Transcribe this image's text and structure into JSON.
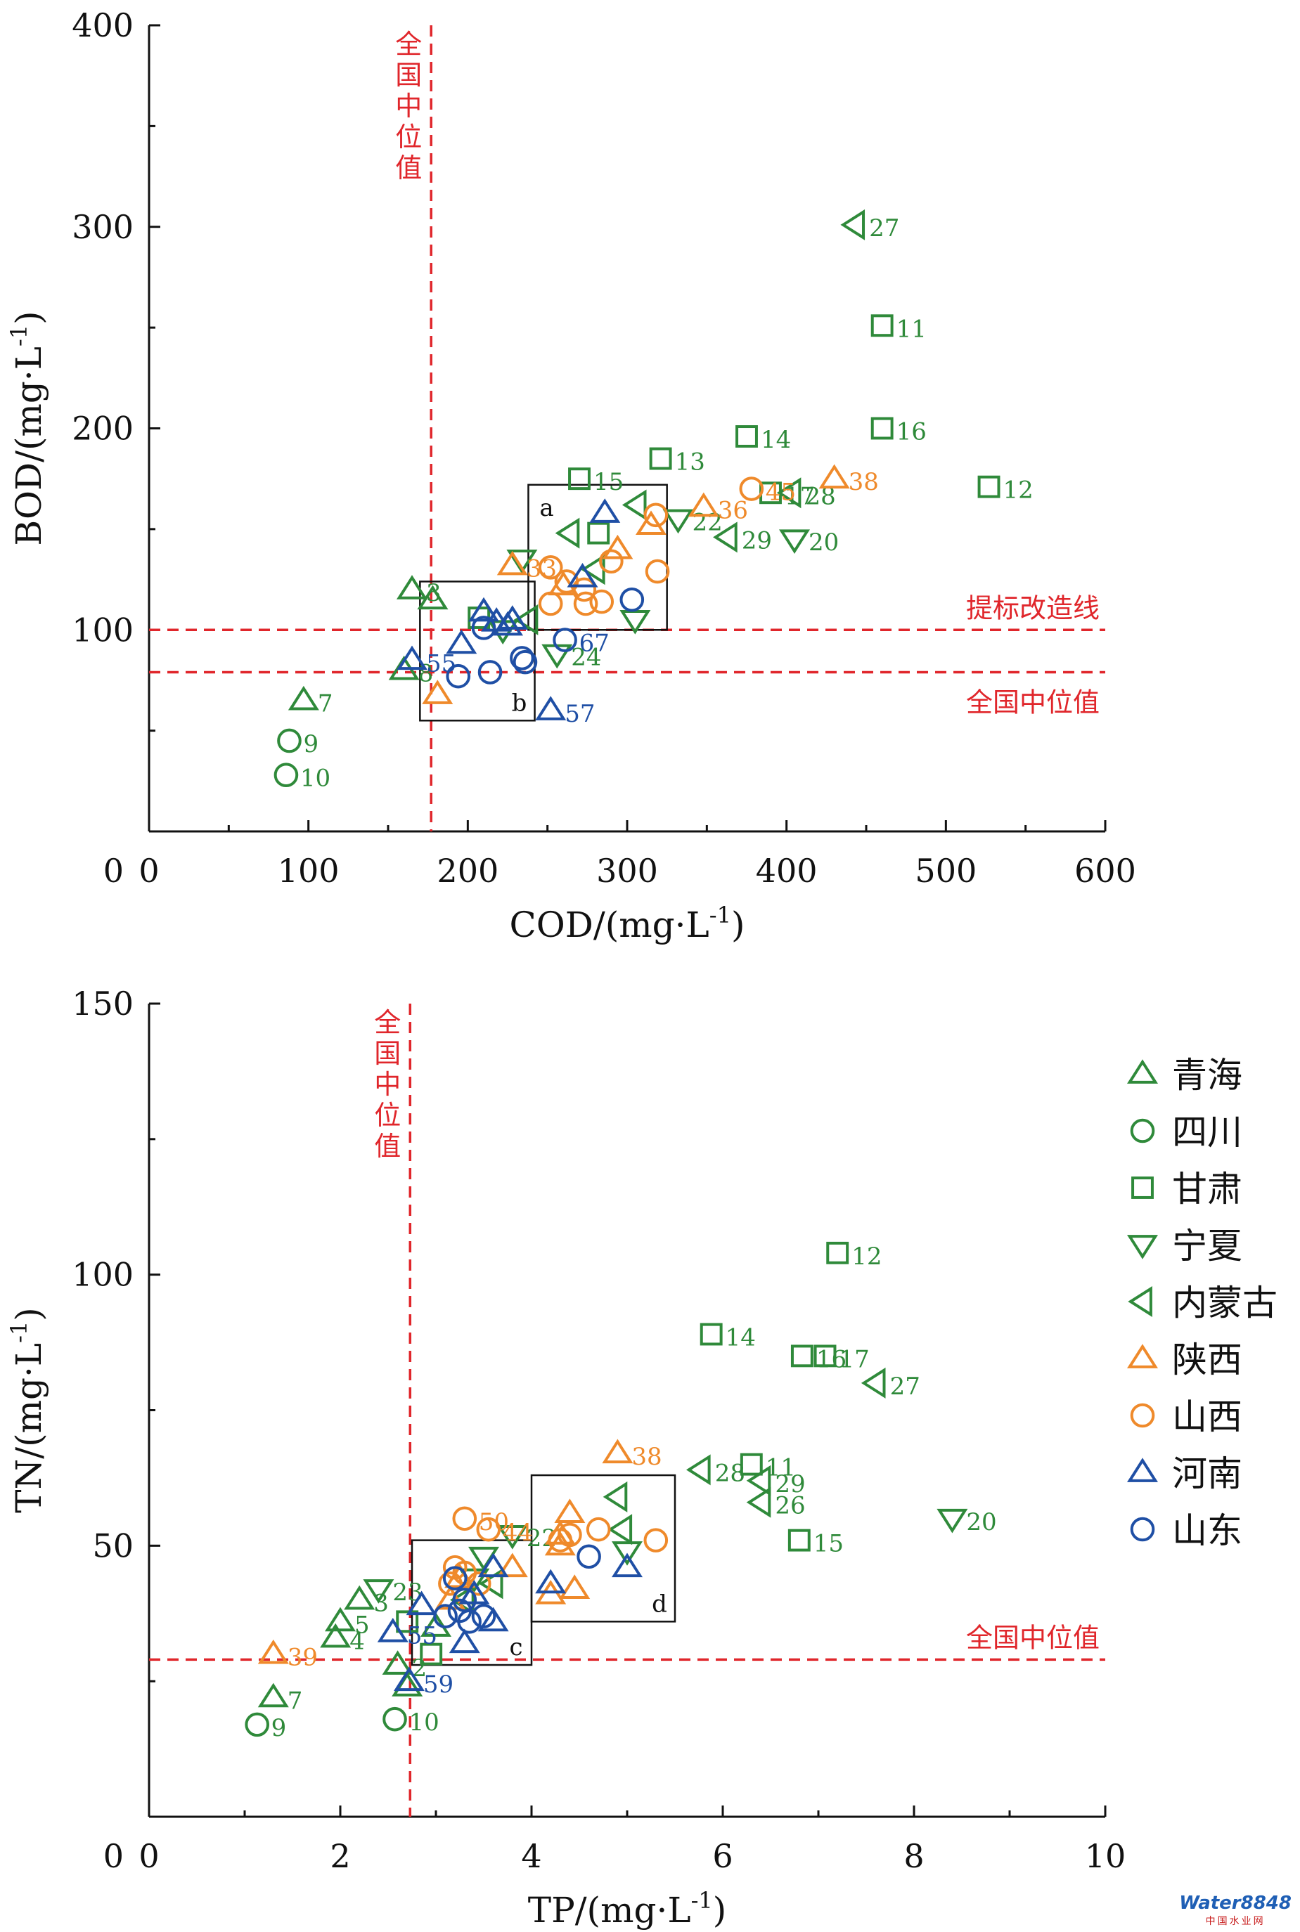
{
  "colors": {
    "qinghai": "#2f8a3a",
    "sichuan": "#2f8a3a",
    "gansu": "#2f8a3a",
    "ningxia": "#2f8a3a",
    "neimenggu": "#2f8a3a",
    "shaanxi": "#ef8a2b",
    "shanxi": "#ef8a2b",
    "henan": "#1f4fa5",
    "shandong": "#1f4fa5",
    "reference": "#e0262b"
  },
  "legend": [
    {
      "key": "qinghai",
      "label": "青海",
      "marker": "triangle-up"
    },
    {
      "key": "sichuan",
      "label": "四川",
      "marker": "circle"
    },
    {
      "key": "gansu",
      "label": "甘肃",
      "marker": "square"
    },
    {
      "key": "ningxia",
      "label": "宁夏",
      "marker": "triangle-down"
    },
    {
      "key": "neimenggu",
      "label": "内蒙古",
      "marker": "triangle-left"
    },
    {
      "key": "shaanxi",
      "label": "陕西",
      "marker": "triangle-up"
    },
    {
      "key": "shanxi",
      "label": "山西",
      "marker": "circle"
    },
    {
      "key": "henan",
      "label": "河南",
      "marker": "triangle-up"
    },
    {
      "key": "shandong",
      "label": "山东",
      "marker": "circle"
    }
  ],
  "watermark": {
    "main": "Water8848",
    "sub": "中国水业网"
  },
  "chart_data": [
    {
      "type": "scatter",
      "xlabel": "COD/(mg·L",
      "xlabel_sup": "-1",
      "xlabel_end": ")",
      "ylabel": "BOD/(mg·L",
      "ylabel_sup": "-1",
      "ylabel_end": ")",
      "xlim": [
        0,
        600
      ],
      "ylim": [
        0,
        400
      ],
      "xticks": [
        0,
        100,
        200,
        300,
        400,
        500,
        600
      ],
      "yticks": [
        0,
        100,
        200,
        300,
        400
      ],
      "ref_lines": [
        {
          "axis": "x",
          "value": 177,
          "label": "全国中位值",
          "vertical_text": true
        },
        {
          "axis": "y",
          "value": 100,
          "label": "提标改造线"
        },
        {
          "axis": "y",
          "value": 79,
          "label": "全国中位值"
        }
      ],
      "boxes": [
        {
          "label": "a",
          "x": [
            238,
            325
          ],
          "y": [
            100,
            172
          ]
        },
        {
          "label": "b",
          "x": [
            170,
            242
          ],
          "y": [
            55,
            124
          ]
        }
      ],
      "points": [
        {
          "s": "qinghai",
          "x": 165,
          "y": 120,
          "label": "3"
        },
        {
          "s": "qinghai",
          "x": 160,
          "y": 80,
          "label": "8"
        },
        {
          "s": "qinghai",
          "x": 97,
          "y": 65,
          "label": "7"
        },
        {
          "s": "qinghai",
          "x": 178,
          "y": 115
        },
        {
          "s": "sichuan",
          "x": 88,
          "y": 45,
          "label": "9"
        },
        {
          "s": "sichuan",
          "x": 86,
          "y": 28,
          "label": "10"
        },
        {
          "s": "gansu",
          "x": 270,
          "y": 175,
          "label": "15"
        },
        {
          "s": "gansu",
          "x": 321,
          "y": 185,
          "label": "13"
        },
        {
          "s": "gansu",
          "x": 375,
          "y": 196,
          "label": "14"
        },
        {
          "s": "gansu",
          "x": 460,
          "y": 251,
          "label": "11"
        },
        {
          "s": "gansu",
          "x": 460,
          "y": 200,
          "label": "16"
        },
        {
          "s": "gansu",
          "x": 527,
          "y": 171,
          "label": "12"
        },
        {
          "s": "gansu",
          "x": 390,
          "y": 168,
          "label": "17"
        },
        {
          "s": "gansu",
          "x": 282,
          "y": 148
        },
        {
          "s": "gansu",
          "x": 207,
          "y": 106
        },
        {
          "s": "ningxia",
          "x": 405,
          "y": 145,
          "label": "20"
        },
        {
          "s": "ningxia",
          "x": 332,
          "y": 155,
          "label": "22"
        },
        {
          "s": "ningxia",
          "x": 256,
          "y": 88,
          "label": "24"
        },
        {
          "s": "ningxia",
          "x": 305,
          "y": 105
        },
        {
          "s": "ningxia",
          "x": 234,
          "y": 135
        },
        {
          "s": "ningxia",
          "x": 222,
          "y": 100
        },
        {
          "s": "neimenggu",
          "x": 443,
          "y": 301,
          "label": "27"
        },
        {
          "s": "neimenggu",
          "x": 403,
          "y": 168,
          "label": "28"
        },
        {
          "s": "neimenggu",
          "x": 363,
          "y": 146,
          "label": "29"
        },
        {
          "s": "neimenggu",
          "x": 264,
          "y": 148
        },
        {
          "s": "neimenggu",
          "x": 306,
          "y": 162
        },
        {
          "s": "neimenggu",
          "x": 280,
          "y": 130
        },
        {
          "s": "neimenggu",
          "x": 238,
          "y": 105
        },
        {
          "s": "shaanxi",
          "x": 430,
          "y": 175,
          "label": "38"
        },
        {
          "s": "shaanxi",
          "x": 348,
          "y": 161,
          "label": "36"
        },
        {
          "s": "shaanxi",
          "x": 228,
          "y": 132,
          "label": "33"
        },
        {
          "s": "shaanxi",
          "x": 181,
          "y": 68
        },
        {
          "s": "shaanxi",
          "x": 315,
          "y": 152
        },
        {
          "s": "shaanxi",
          "x": 294,
          "y": 140
        },
        {
          "s": "shaanxi",
          "x": 260,
          "y": 122
        },
        {
          "s": "shanxi",
          "x": 378,
          "y": 170,
          "label": "45"
        },
        {
          "s": "shanxi",
          "x": 318,
          "y": 157
        },
        {
          "s": "shanxi",
          "x": 319,
          "y": 129
        },
        {
          "s": "shanxi",
          "x": 252,
          "y": 131
        },
        {
          "s": "shanxi",
          "x": 262,
          "y": 124
        },
        {
          "s": "shanxi",
          "x": 273,
          "y": 120
        },
        {
          "s": "shanxi",
          "x": 252,
          "y": 113
        },
        {
          "s": "shanxi",
          "x": 274,
          "y": 113
        },
        {
          "s": "shanxi",
          "x": 284,
          "y": 114
        },
        {
          "s": "shanxi",
          "x": 290,
          "y": 134
        },
        {
          "s": "henan",
          "x": 165,
          "y": 85,
          "label": "55"
        },
        {
          "s": "henan",
          "x": 252,
          "y": 60,
          "label": "57"
        },
        {
          "s": "henan",
          "x": 286,
          "y": 158
        },
        {
          "s": "henan",
          "x": 272,
          "y": 126
        },
        {
          "s": "henan",
          "x": 196,
          "y": 93
        },
        {
          "s": "henan",
          "x": 210,
          "y": 109
        },
        {
          "s": "henan",
          "x": 218,
          "y": 104
        },
        {
          "s": "henan",
          "x": 225,
          "y": 102
        },
        {
          "s": "henan",
          "x": 228,
          "y": 105
        },
        {
          "s": "shandong",
          "x": 261,
          "y": 95,
          "label": "67"
        },
        {
          "s": "shandong",
          "x": 303,
          "y": 115
        },
        {
          "s": "shandong",
          "x": 194,
          "y": 77
        },
        {
          "s": "shandong",
          "x": 214,
          "y": 79
        },
        {
          "s": "shandong",
          "x": 234,
          "y": 86
        },
        {
          "s": "shandong",
          "x": 210,
          "y": 101
        },
        {
          "s": "shandong",
          "x": 236,
          "y": 84
        }
      ]
    },
    {
      "type": "scatter",
      "xlabel": "TP/(mg·L",
      "xlabel_sup": "-1",
      "xlabel_end": ")",
      "ylabel": "TN/(mg·L",
      "ylabel_sup": "-1",
      "ylabel_end": ")",
      "xlim": [
        0,
        10
      ],
      "ylim": [
        0,
        150
      ],
      "xticks": [
        0,
        2,
        4,
        6,
        8,
        10
      ],
      "yticks": [
        0,
        50,
        100,
        150
      ],
      "ref_lines": [
        {
          "axis": "x",
          "value": 2.73,
          "label": "全国中位值",
          "vertical_text": true
        },
        {
          "axis": "y",
          "value": 29,
          "label": "全国中位值"
        }
      ],
      "boxes": [
        {
          "label": "c",
          "x": [
            2.75,
            4.0
          ],
          "y": [
            28,
            51
          ]
        },
        {
          "label": "d",
          "x": [
            4.0,
            5.5
          ],
          "y": [
            36,
            63
          ]
        }
      ],
      "points": [
        {
          "s": "qinghai",
          "x": 1.3,
          "y": 22,
          "label": "7"
        },
        {
          "s": "qinghai",
          "x": 1.95,
          "y": 33,
          "label": "4"
        },
        {
          "s": "qinghai",
          "x": 2.0,
          "y": 36,
          "label": "5"
        },
        {
          "s": "qinghai",
          "x": 2.2,
          "y": 40,
          "label": "3"
        },
        {
          "s": "qinghai",
          "x": 2.6,
          "y": 28,
          "label": "2"
        },
        {
          "s": "qinghai",
          "x": 2.7,
          "y": 24
        },
        {
          "s": "qinghai",
          "x": 3.0,
          "y": 35
        },
        {
          "s": "sichuan",
          "x": 1.13,
          "y": 17,
          "label": "9"
        },
        {
          "s": "sichuan",
          "x": 2.57,
          "y": 18,
          "label": "10"
        },
        {
          "s": "gansu",
          "x": 5.88,
          "y": 89,
          "label": "14"
        },
        {
          "s": "gansu",
          "x": 6.83,
          "y": 85,
          "label": "16"
        },
        {
          "s": "gansu",
          "x": 7.07,
          "y": 85,
          "label": "17"
        },
        {
          "s": "gansu",
          "x": 7.2,
          "y": 104,
          "label": "12"
        },
        {
          "s": "gansu",
          "x": 6.3,
          "y": 65,
          "label": "11"
        },
        {
          "s": "gansu",
          "x": 6.8,
          "y": 51,
          "label": "15"
        },
        {
          "s": "gansu",
          "x": 2.7,
          "y": 36
        },
        {
          "s": "gansu",
          "x": 2.95,
          "y": 30
        },
        {
          "s": "ningxia",
          "x": 8.4,
          "y": 55,
          "label": "20"
        },
        {
          "s": "ningxia",
          "x": 3.8,
          "y": 52,
          "label": "22"
        },
        {
          "s": "ningxia",
          "x": 2.4,
          "y": 42,
          "label": "23"
        },
        {
          "s": "ningxia",
          "x": 3.5,
          "y": 48
        },
        {
          "s": "ningxia",
          "x": 3.4,
          "y": 44
        },
        {
          "s": "ningxia",
          "x": 5.0,
          "y": 49
        },
        {
          "s": "neimenggu",
          "x": 7.6,
          "y": 80,
          "label": "27"
        },
        {
          "s": "neimenggu",
          "x": 5.77,
          "y": 64,
          "label": "28"
        },
        {
          "s": "neimenggu",
          "x": 6.4,
          "y": 62,
          "label": "29"
        },
        {
          "s": "neimenggu",
          "x": 6.4,
          "y": 58,
          "label": "26"
        },
        {
          "s": "neimenggu",
          "x": 4.9,
          "y": 59
        },
        {
          "s": "neimenggu",
          "x": 4.95,
          "y": 53
        },
        {
          "s": "neimenggu",
          "x": 3.6,
          "y": 43
        },
        {
          "s": "neimenggu",
          "x": 3.3,
          "y": 40
        },
        {
          "s": "shaanxi",
          "x": 1.3,
          "y": 30,
          "label": "39"
        },
        {
          "s": "shaanxi",
          "x": 4.9,
          "y": 67,
          "label": "38"
        },
        {
          "s": "shaanxi",
          "x": 4.4,
          "y": 56
        },
        {
          "s": "shaanxi",
          "x": 4.3,
          "y": 52
        },
        {
          "s": "shaanxi",
          "x": 4.3,
          "y": 50
        },
        {
          "s": "shaanxi",
          "x": 4.2,
          "y": 41
        },
        {
          "s": "shaanxi",
          "x": 4.45,
          "y": 42
        },
        {
          "s": "shaanxi",
          "x": 3.8,
          "y": 46
        },
        {
          "s": "shaanxi",
          "x": 3.25,
          "y": 44
        },
        {
          "s": "shaanxi",
          "x": 3.15,
          "y": 40
        },
        {
          "s": "shanxi",
          "x": 3.3,
          "y": 55,
          "label": "50"
        },
        {
          "s": "shanxi",
          "x": 3.55,
          "y": 53,
          "label": "44"
        },
        {
          "s": "shanxi",
          "x": 4.3,
          "y": 51
        },
        {
          "s": "shanxi",
          "x": 4.4,
          "y": 52
        },
        {
          "s": "shanxi",
          "x": 4.7,
          "y": 53
        },
        {
          "s": "shanxi",
          "x": 5.3,
          "y": 51
        },
        {
          "s": "shanxi",
          "x": 3.2,
          "y": 46
        },
        {
          "s": "shanxi",
          "x": 3.3,
          "y": 45
        },
        {
          "s": "shanxi",
          "x": 3.15,
          "y": 43
        },
        {
          "s": "shanxi",
          "x": 3.45,
          "y": 43
        },
        {
          "s": "henan",
          "x": 2.55,
          "y": 34,
          "label": "55"
        },
        {
          "s": "henan",
          "x": 2.72,
          "y": 25,
          "label": "59"
        },
        {
          "s": "henan",
          "x": 5.0,
          "y": 46
        },
        {
          "s": "henan",
          "x": 4.2,
          "y": 43
        },
        {
          "s": "henan",
          "x": 3.6,
          "y": 46
        },
        {
          "s": "henan",
          "x": 3.4,
          "y": 41
        },
        {
          "s": "henan",
          "x": 3.6,
          "y": 36
        },
        {
          "s": "henan",
          "x": 3.3,
          "y": 32
        },
        {
          "s": "henan",
          "x": 2.85,
          "y": 39
        },
        {
          "s": "shandong",
          "x": 4.6,
          "y": 48
        },
        {
          "s": "shandong",
          "x": 3.2,
          "y": 44
        },
        {
          "s": "shandong",
          "x": 3.3,
          "y": 40
        },
        {
          "s": "shandong",
          "x": 3.1,
          "y": 37
        },
        {
          "s": "shandong",
          "x": 3.35,
          "y": 36
        },
        {
          "s": "shandong",
          "x": 3.5,
          "y": 37
        },
        {
          "s": "shandong",
          "x": 3.25,
          "y": 38
        }
      ]
    }
  ]
}
